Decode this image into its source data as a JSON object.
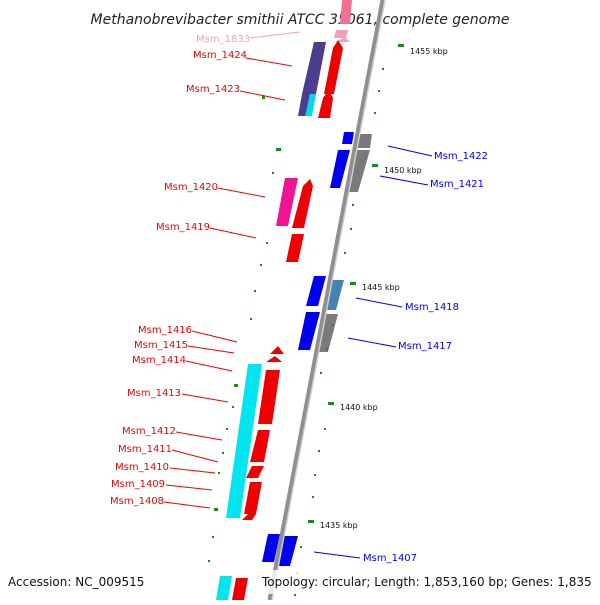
{
  "title": "Methanobrevibacter smithii ATCC 35061, complete genome",
  "footer": {
    "accession": "Accession: NC_009515",
    "topology": "Topology: circular; Length: 1,853,160 bp; Genes: 1,835"
  },
  "colors": {
    "forward": "#ee0000",
    "reverse": "#0000ee",
    "faded": "#f090b0",
    "backbone": "#8f8f8f",
    "tick": "#1a8a1a",
    "cyan": "#00e5ee",
    "magenta": "#ee1493",
    "navy": "#4a3f8f",
    "grey": "#7a7a7a",
    "steel": "#4682b4"
  },
  "scale_labels": [
    "1455 kbp",
    "1450 kbp",
    "1445 kbp",
    "1440 kbp",
    "1435 kbp"
  ],
  "left_genes": [
    "Msm_1833",
    "Msm_1424",
    "Msm_1423",
    "Msm_1420",
    "Msm_1419",
    "Msm_1416",
    "Msm_1415",
    "Msm_1414",
    "Msm_1413",
    "Msm_1412",
    "Msm_1411",
    "Msm_1410",
    "Msm_1409",
    "Msm_1408"
  ],
  "right_genes": [
    "Msm_1422",
    "Msm_1421",
    "Msm_1418",
    "Msm_1417",
    "Msm_1407"
  ]
}
